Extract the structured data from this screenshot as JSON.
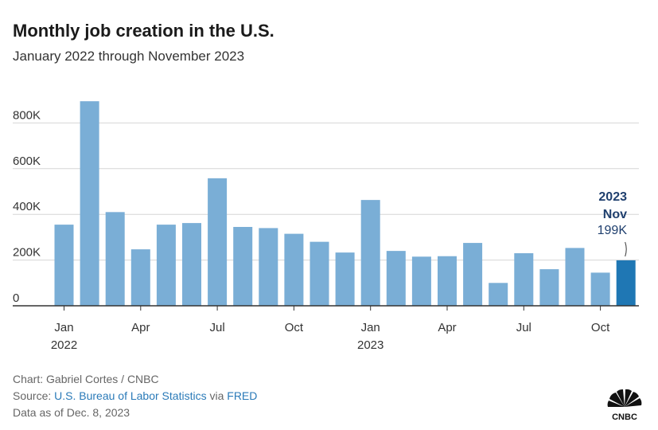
{
  "chart_data": {
    "type": "bar",
    "title": "Monthly job creation in the U.S.",
    "subtitle": "January 2022 through November 2023",
    "xlabel": "",
    "ylabel": "",
    "ylim": [
      0,
      900000
    ],
    "yticks": [
      {
        "value": 0,
        "label": "0"
      },
      {
        "value": 200000,
        "label": "200K"
      },
      {
        "value": 400000,
        "label": "400K"
      },
      {
        "value": 600000,
        "label": "600K"
      },
      {
        "value": 800000,
        "label": "800K"
      }
    ],
    "categories": [
      "Jan 2022",
      "Feb 2022",
      "Mar 2022",
      "Apr 2022",
      "May 2022",
      "Jun 2022",
      "Jul 2022",
      "Aug 2022",
      "Sep 2022",
      "Oct 2022",
      "Nov 2022",
      "Dec 2022",
      "Jan 2023",
      "Feb 2023",
      "Mar 2023",
      "Apr 2023",
      "May 2023",
      "Jun 2023",
      "Jul 2023",
      "Aug 2023",
      "Sep 2023",
      "Oct 2023",
      "Nov 2023"
    ],
    "values": [
      355000,
      895000,
      410000,
      247000,
      355000,
      362000,
      558000,
      345000,
      340000,
      315000,
      280000,
      233000,
      463000,
      240000,
      215000,
      217000,
      275000,
      100000,
      230000,
      160000,
      253000,
      145000,
      199000
    ],
    "xticks": [
      {
        "index": 0,
        "label": "Jan",
        "year": "2022"
      },
      {
        "index": 3,
        "label": "Apr"
      },
      {
        "index": 6,
        "label": "Jul"
      },
      {
        "index": 9,
        "label": "Oct"
      },
      {
        "index": 12,
        "label": "Jan",
        "year": "2023"
      },
      {
        "index": 15,
        "label": "Apr"
      },
      {
        "index": 18,
        "label": "Jul"
      },
      {
        "index": 21,
        "label": "Oct"
      }
    ],
    "bar_color": "#7aaed6",
    "highlight_color": "#1f77b4",
    "highlight_index": 22,
    "annotation": {
      "year": "2023",
      "month": "Nov",
      "value_label": "199K"
    },
    "grid": true
  },
  "footer": {
    "chart_credit": "Chart: Gabriel Cortes / CNBC",
    "source_prefix": "Source: ",
    "source_link1": "U.S. Bureau of Labor Statistics",
    "source_via": " via ",
    "source_link2": "FRED",
    "data_as_of": "Data as of Dec. 8, 2023",
    "logo_text": "CNBC"
  },
  "colors": {
    "title": "#1a1a1a",
    "annotation": "#1f3f6e",
    "link": "#2a7ab8"
  }
}
